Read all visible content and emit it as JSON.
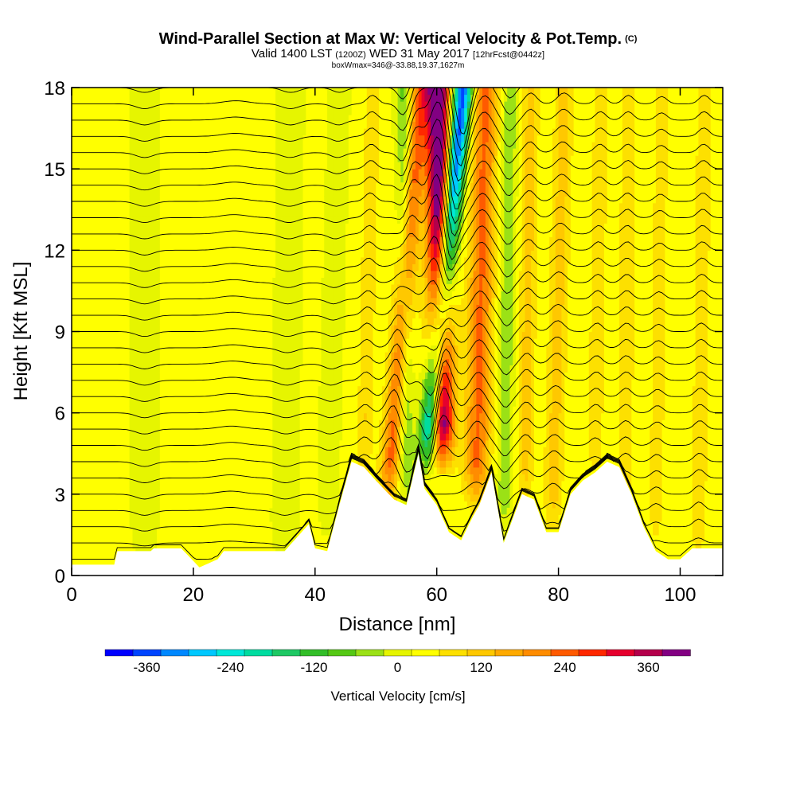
{
  "header": {
    "title_main": "Wind-Parallel Section at Max W: Vertical Velocity & Pot.Temp.",
    "copyright": "(C)",
    "valid_prefix": "Valid 1400 LST",
    "valid_utc": "(1200Z)",
    "valid_date": "WED 31 May 2017",
    "forecast": "[12hrFcst@0442z]",
    "box_info": "boxWmax=346@-33.88,19.37,1627m"
  },
  "chart_data": {
    "type": "heatmap",
    "xlabel": "Distance [nm]",
    "ylabel": "Height [Kft MSL]",
    "xlim": [
      0,
      107
    ],
    "ylim": [
      0,
      18
    ],
    "x_ticks": [
      0,
      20,
      40,
      60,
      80,
      100
    ],
    "y_ticks": [
      0,
      3,
      6,
      9,
      12,
      15,
      18
    ],
    "terrain_kft": [
      [
        0,
        0.4
      ],
      [
        7,
        0.4
      ],
      [
        7,
        0.9
      ],
      [
        13,
        0.9
      ],
      [
        13,
        1.0
      ],
      [
        18,
        1.0
      ],
      [
        21,
        0.3
      ],
      [
        24,
        0.6
      ],
      [
        25,
        0.9
      ],
      [
        35,
        0.9
      ],
      [
        37,
        1.4
      ],
      [
        39,
        1.9
      ],
      [
        40,
        1.0
      ],
      [
        42,
        0.9
      ],
      [
        44,
        2.6
      ],
      [
        46,
        4.2
      ],
      [
        48,
        4.0
      ],
      [
        50,
        3.5
      ],
      [
        53,
        2.8
      ],
      [
        55,
        2.6
      ],
      [
        57,
        4.5
      ],
      [
        58,
        3.2
      ],
      [
        60,
        2.6
      ],
      [
        62,
        1.6
      ],
      [
        64,
        1.3
      ],
      [
        66,
        2.2
      ],
      [
        67,
        2.6
      ],
      [
        69,
        3.8
      ],
      [
        70,
        2.5
      ],
      [
        71,
        1.2
      ],
      [
        74,
        3.0
      ],
      [
        76,
        2.8
      ],
      [
        78,
        1.6
      ],
      [
        80,
        1.6
      ],
      [
        82,
        3.0
      ],
      [
        84,
        3.5
      ],
      [
        86,
        3.8
      ],
      [
        88,
        4.2
      ],
      [
        90,
        4.0
      ],
      [
        92,
        3.0
      ],
      [
        94,
        1.8
      ],
      [
        96,
        0.9
      ],
      [
        98,
        0.6
      ],
      [
        100,
        0.6
      ],
      [
        102,
        1.0
      ],
      [
        107,
        1.0
      ]
    ],
    "velocity_features": [
      {
        "x_base": 58.5,
        "y_base": 4.5,
        "x_top": 64.3,
        "y_top": 18,
        "amplitude": -400,
        "width_nm": 1.6
      },
      {
        "x_base": 60.8,
        "y_base": 4.5,
        "x_top": 60.2,
        "y_top": 18,
        "amplitude": 430,
        "width_nm": 2.0
      },
      {
        "x_base": 52.0,
        "y_base": 3.0,
        "x_top": 57.5,
        "y_top": 18,
        "amplitude": 200,
        "width_nm": 1.6
      },
      {
        "x_base": 66.5,
        "y_base": 3.0,
        "x_top": 68.0,
        "y_top": 18,
        "amplitude": 200,
        "width_nm": 2.0
      },
      {
        "x_base": 48.0,
        "y_base": 3.5,
        "x_top": 49.5,
        "y_top": 18,
        "amplitude": 70,
        "width_nm": 1.2
      },
      {
        "x_base": 55.0,
        "y_base": 3.0,
        "x_top": 54.5,
        "y_top": 18,
        "amplitude": -100,
        "width_nm": 1.2
      },
      {
        "x_base": 71.0,
        "y_base": 2.0,
        "x_top": 72.0,
        "y_top": 18,
        "amplitude": -90,
        "width_nm": 1.2
      },
      {
        "x_base": 74.5,
        "y_base": 3.0,
        "x_top": 75.5,
        "y_top": 18,
        "amplitude": 90,
        "width_nm": 1.3
      },
      {
        "x_base": 79.0,
        "y_base": 2.0,
        "x_top": 81.0,
        "y_top": 18,
        "amplitude": 90,
        "width_nm": 1.5
      },
      {
        "x_base": 86.0,
        "y_base": 4.0,
        "x_top": 87.0,
        "y_top": 18,
        "amplitude": 70,
        "width_nm": 1.2
      },
      {
        "x_base": 91.0,
        "y_base": 3.0,
        "x_top": 91.5,
        "y_top": 18,
        "amplitude": 70,
        "width_nm": 1.2
      },
      {
        "x_base": 96.0,
        "y_base": 1.5,
        "x_top": 97.0,
        "y_top": 18,
        "amplitude": 60,
        "width_nm": 1.2
      },
      {
        "x_base": 103.0,
        "y_base": 1.0,
        "x_top": 104.0,
        "y_top": 18,
        "amplitude": 70,
        "width_nm": 1.2
      },
      {
        "x_base": 35.0,
        "y_base": 1.0,
        "x_top": 36.0,
        "y_top": 18,
        "amplitude": -40,
        "width_nm": 2.0
      },
      {
        "x_base": 12.0,
        "y_base": 1.0,
        "x_top": 12.0,
        "y_top": 18,
        "amplitude": -40,
        "width_nm": 2.0
      },
      {
        "x_base": 42.0,
        "y_base": 2.0,
        "x_top": 44.0,
        "y_top": 18,
        "amplitude": -40,
        "width_nm": 1.6
      },
      {
        "x_base": 26.0,
        "y_base": 1.0,
        "x_top": 27.0,
        "y_top": 18,
        "amplitude": 25,
        "width_nm": 3.0
      }
    ],
    "velocity_background_cm_s": 30,
    "colorbar": {
      "label": "Vertical Velocity [cm/s]",
      "tick_labels": [
        "-360",
        "-240",
        "-120",
        "0",
        "120",
        "240",
        "360"
      ],
      "tick_values": [
        -360,
        -240,
        -120,
        0,
        120,
        240,
        360
      ],
      "min": -420,
      "max": 420,
      "step": 40,
      "colors": [
        "#0000ff",
        "#0044ff",
        "#0088ff",
        "#00c8ff",
        "#00e8d8",
        "#00dca0",
        "#1ec864",
        "#32be28",
        "#55c814",
        "#9be116",
        "#e6f500",
        "#ffff00",
        "#fde000",
        "#ffc800",
        "#ffaa00",
        "#ff8c00",
        "#ff5a00",
        "#ff2800",
        "#e6002d",
        "#b4004b",
        "#820082"
      ]
    }
  }
}
